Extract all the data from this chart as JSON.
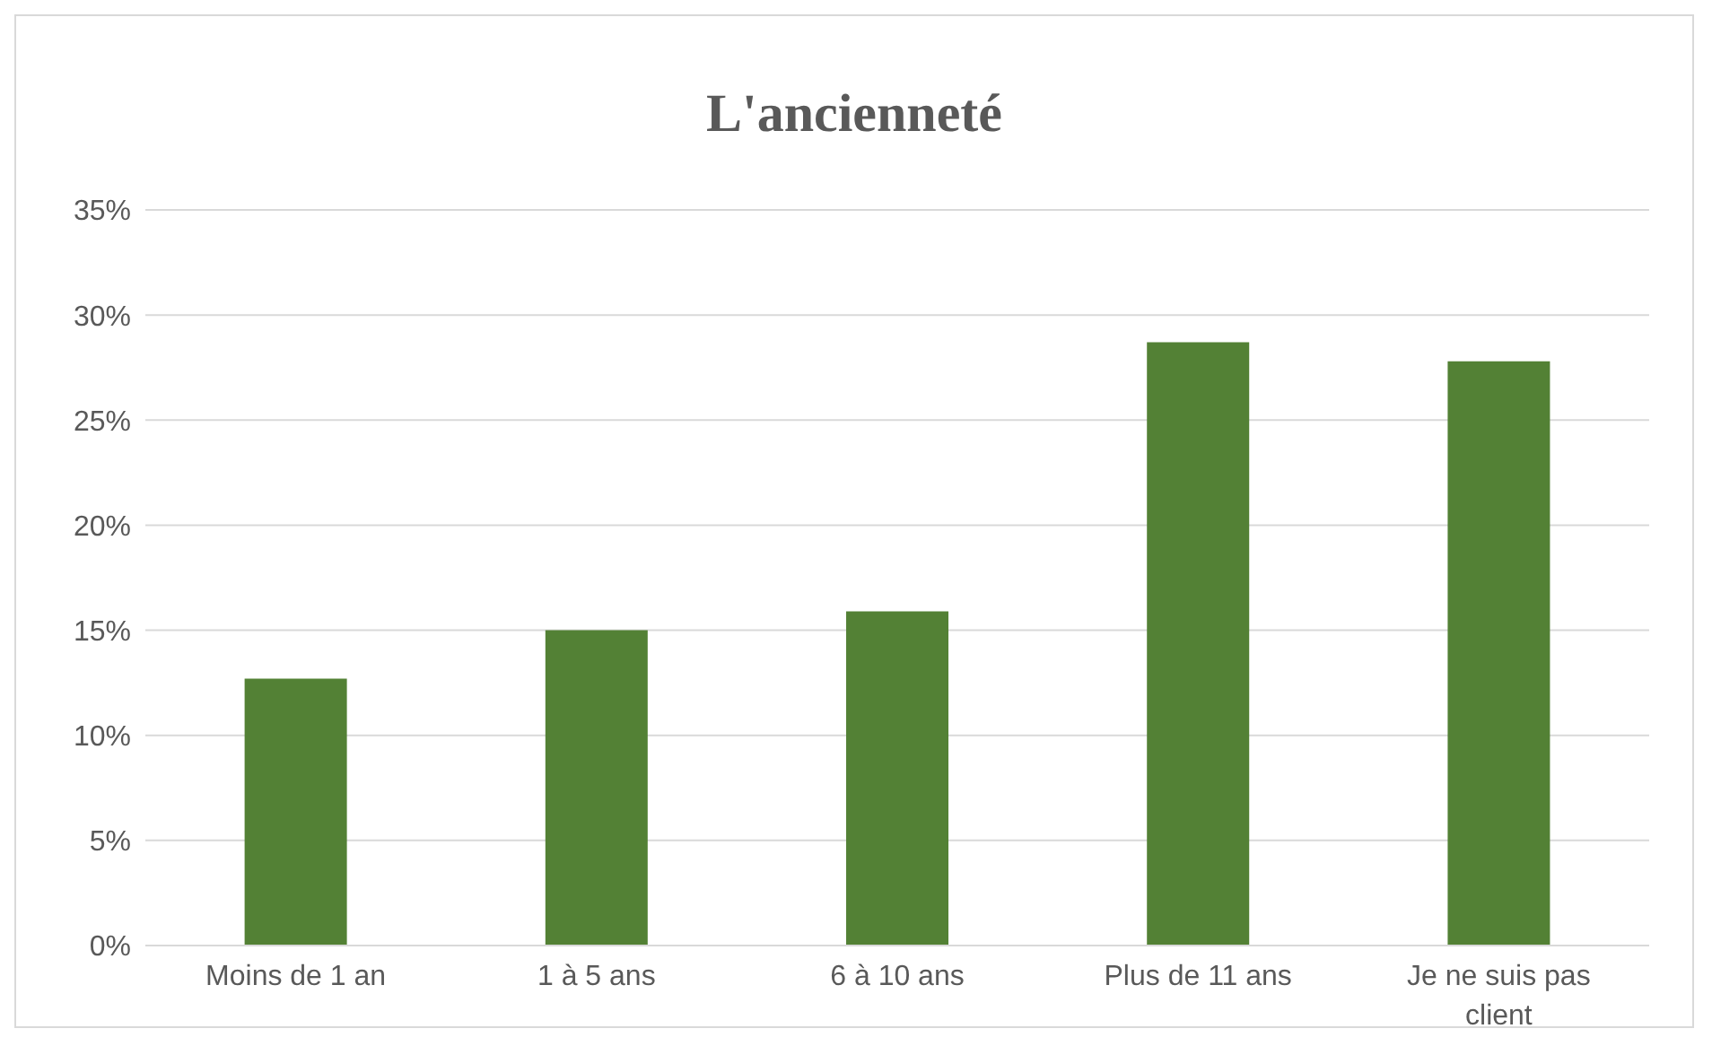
{
  "chart_data": {
    "type": "bar",
    "title": "L'ancienneté",
    "categories": [
      "Moins de 1 an",
      "1 à 5 ans",
      "6 à 10 ans",
      "Plus de 11 ans",
      "Je ne suis pas client"
    ],
    "values": [
      12.7,
      15.0,
      15.9,
      28.7,
      27.8
    ],
    "color": "#538135",
    "ylim": [
      0,
      35
    ],
    "yticks": [
      {
        "value": 0,
        "label": "0%"
      },
      {
        "value": 5,
        "label": "5%"
      },
      {
        "value": 10,
        "label": "10%"
      },
      {
        "value": 15,
        "label": "15%"
      },
      {
        "value": 20,
        "label": "20%"
      },
      {
        "value": 25,
        "label": "25%"
      },
      {
        "value": 30,
        "label": "30%"
      },
      {
        "value": 35,
        "label": "35%"
      }
    ],
    "grid": "y"
  }
}
